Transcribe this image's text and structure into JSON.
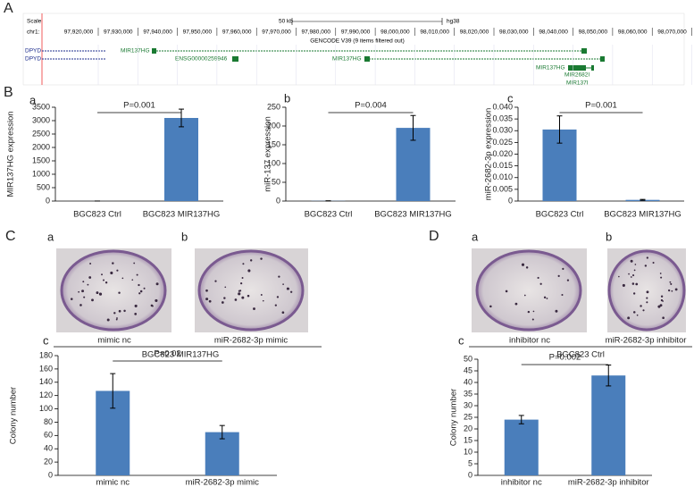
{
  "panel_labels": [
    "A",
    "B",
    "a",
    "b",
    "c",
    "C",
    "a",
    "b",
    "D",
    "a",
    "b",
    "c",
    "c"
  ],
  "genome": {
    "scale": "Scale",
    "scale_size": "50 kb",
    "assembly": "hg38",
    "chrom": "chr1:",
    "positions": [
      "97,920,000",
      "97,930,000",
      "97,940,000",
      "97,950,000",
      "97,960,000",
      "97,970,000",
      "97,980,000",
      "97,990,000",
      "98,000,000",
      "98,010,000",
      "98,020,000",
      "98,030,000",
      "98,040,000",
      "98,050,000",
      "98,060,000",
      "98,070,000"
    ],
    "track_title": "GENCODE V39 (9 items filtered out)",
    "genes": [
      "DPYD",
      "MIR137HG",
      "DPYD",
      "ENSG00000259946",
      "MIR137HG",
      "MIR137HG",
      "MIR2682I",
      "MIR137I"
    ]
  },
  "photo_groups": [
    {
      "group": "BGC823 MIR137HG",
      "captions": [
        "mimic nc",
        "miR-2682-3p mimic"
      ]
    },
    {
      "group": "BGC823 Ctrl",
      "captions": [
        "inhibitor nc",
        "miR-2682-3p inhibitor"
      ]
    }
  ],
  "chart_data": [
    {
      "type": "bar",
      "ylabel": "MIR137HG expression",
      "categories": [
        "BGC823 Ctrl",
        "BGC823 MIR137HG"
      ],
      "values": [
        1,
        3100
      ],
      "errors": [
        0,
        330
      ],
      "color": "#4a7ebb",
      "ylim": [
        0,
        3500
      ],
      "yticks": [
        0,
        500,
        1000,
        1500,
        2000,
        2500,
        3000,
        3500
      ],
      "annotation": "P=0.001"
    },
    {
      "type": "bar",
      "ylabel": "miR-137 expression",
      "categories": [
        "BGC823 Ctrl",
        "BGC823 MIR137HG"
      ],
      "values": [
        0.5,
        195
      ],
      "errors": [
        0,
        33
      ],
      "color": "#4a7ebb",
      "ylim": [
        0,
        250
      ],
      "yticks": [
        0,
        50,
        100,
        150,
        200,
        250
      ],
      "annotation": "P=0.004"
    },
    {
      "type": "bar",
      "ylabel": "miR-2682-3p expression",
      "categories": [
        "BGC823 Ctrl",
        "BGC823 MIR137HG"
      ],
      "values": [
        0.0305,
        0.0005
      ],
      "errors": [
        0.0058,
        0.0002
      ],
      "color": "#4a7ebb",
      "ylim": [
        0,
        0.04
      ],
      "yticks": [
        0,
        0.005,
        {
          "value": 0.01,
          "label": "0.010"
        },
        0.015,
        {
          "value": 0.02,
          "label": "0.020"
        },
        0.025,
        {
          "value": 0.03,
          "label": "0.030"
        },
        0.035,
        {
          "value": 0.04,
          "label": "0.040"
        }
      ],
      "annotation": "P=0.001"
    },
    {
      "type": "bar",
      "ylabel": "Colony number",
      "categories": [
        "mimic nc",
        "miR-2682-3p mimic"
      ],
      "values": [
        127,
        65
      ],
      "errors": [
        26,
        10
      ],
      "color": "#4a7ebb",
      "ylim": [
        0,
        180
      ],
      "yticks": [
        0,
        20,
        40,
        60,
        80,
        100,
        120,
        140,
        160,
        180
      ],
      "annotation": "P=0.02"
    },
    {
      "type": "bar",
      "ylabel": "Colony number",
      "categories": [
        "inhibitor nc",
        "miR-2682-3p inhibitor"
      ],
      "values": [
        24,
        43
      ],
      "errors": [
        1.8,
        4.5
      ],
      "color": "#4a7ebb",
      "ylim": [
        0,
        50
      ],
      "yticks": [
        0,
        5,
        10,
        15,
        20,
        25,
        30,
        35,
        40,
        45,
        50
      ],
      "annotation": "P=0.002"
    }
  ]
}
